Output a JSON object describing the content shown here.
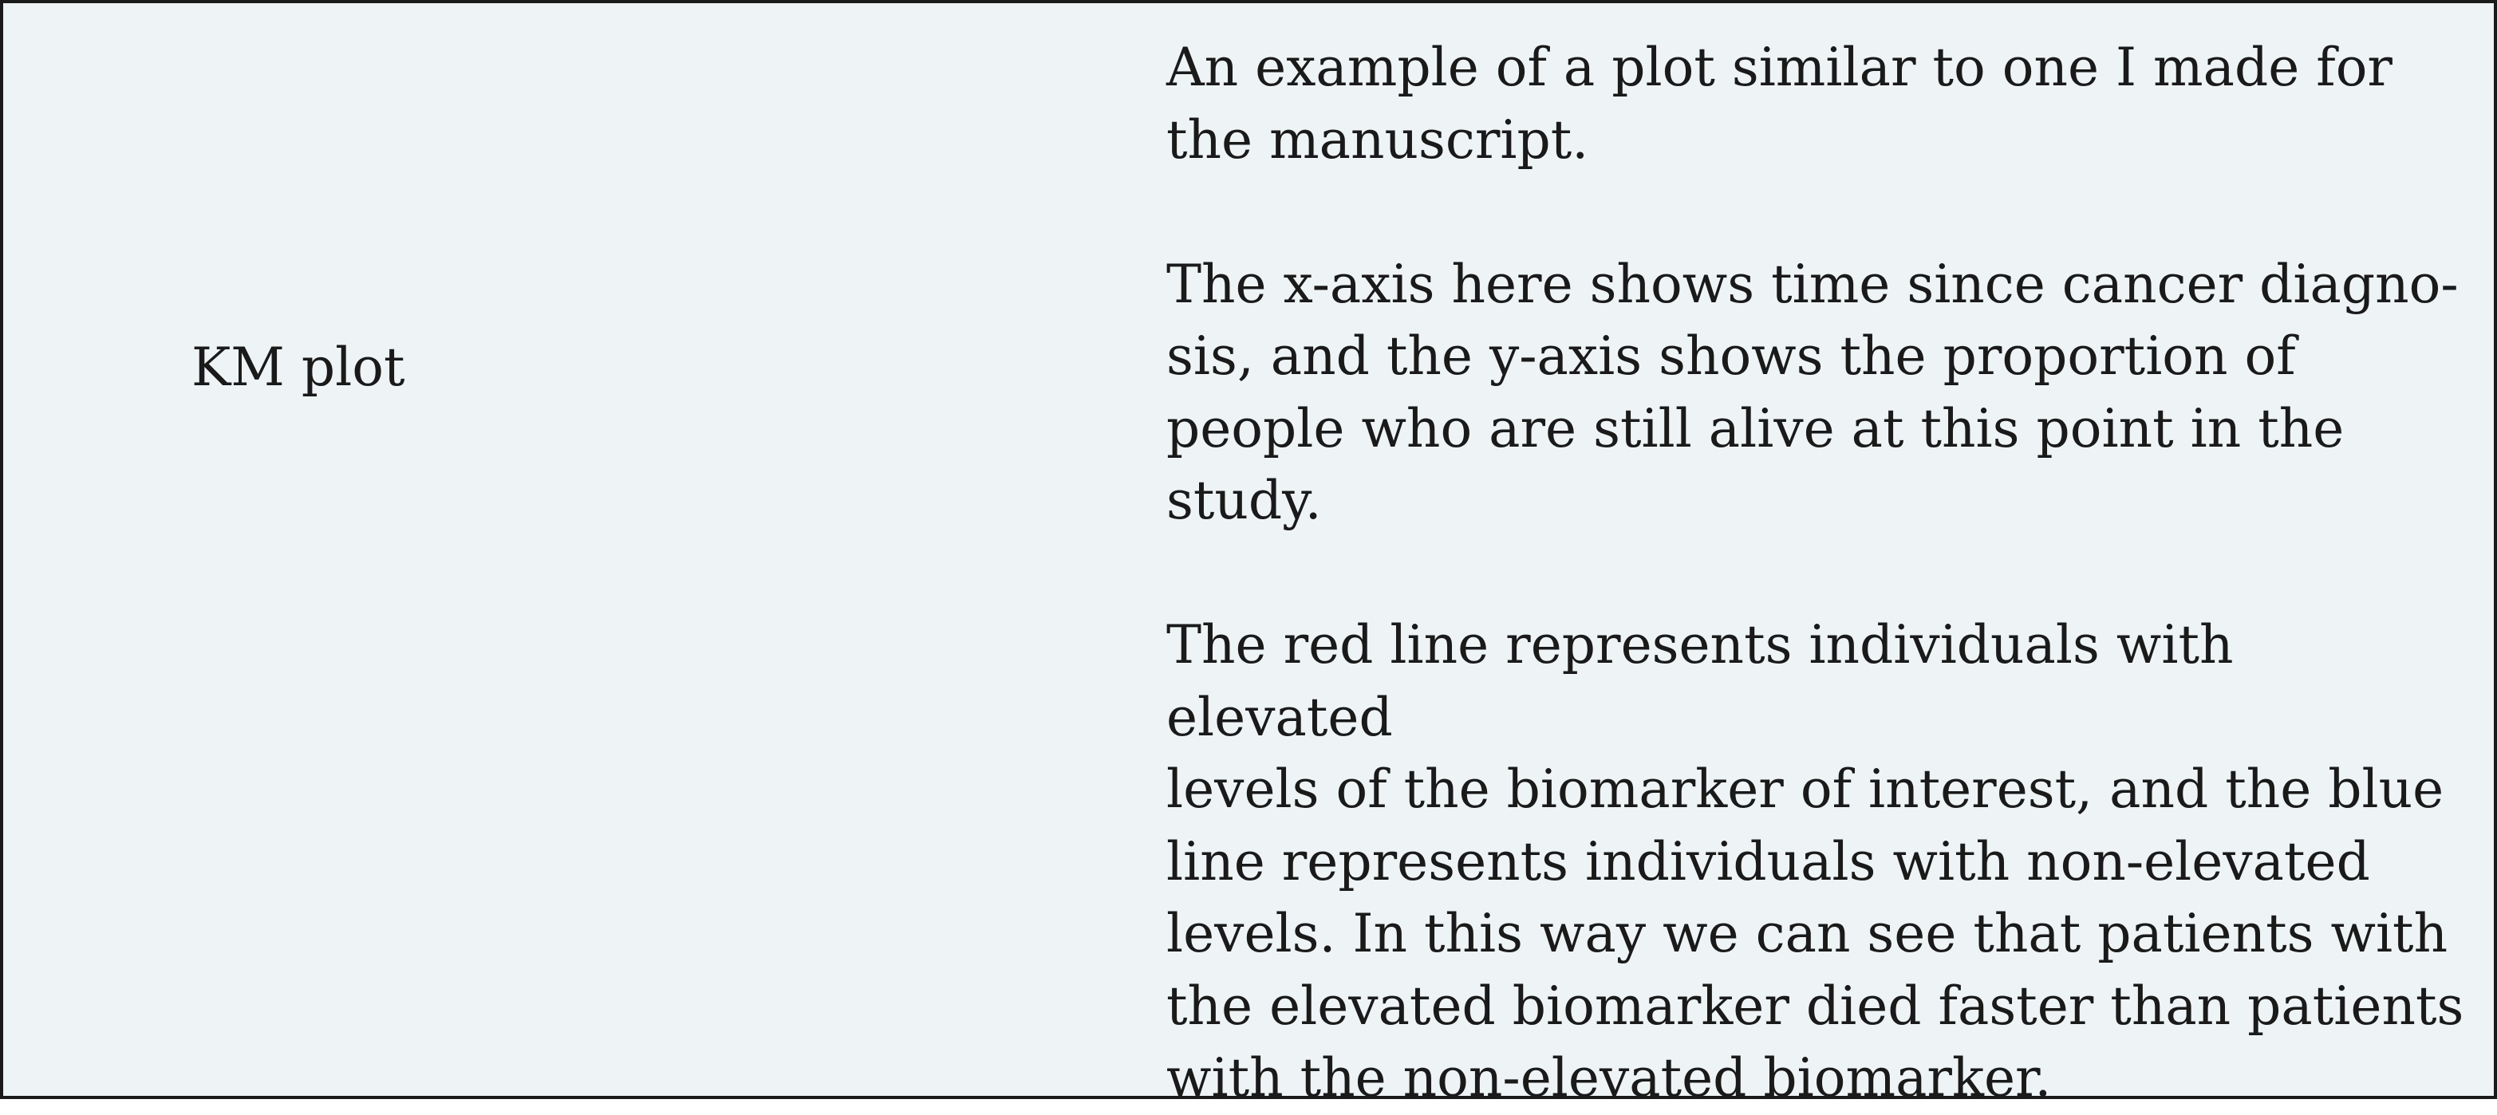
{
  "card": {
    "term": "KM plot",
    "paragraphs": [
      "An example of a plot similar to one I made for\nthe manuscript.",
      "The x-axis here shows time since cancer diagno-\nsis, and the y-axis shows the proportion of\npeople who are still alive at this point in the\nstudy.",
      "The red line represents individuals with elevated\nlevels of the biomarker of interest, and the blue\nline represents individuals with non-elevated\nlevels. In this way we can see that patients with\nthe elevated biomarker died faster than patients\nwith the non-elevated biomarker."
    ]
  }
}
